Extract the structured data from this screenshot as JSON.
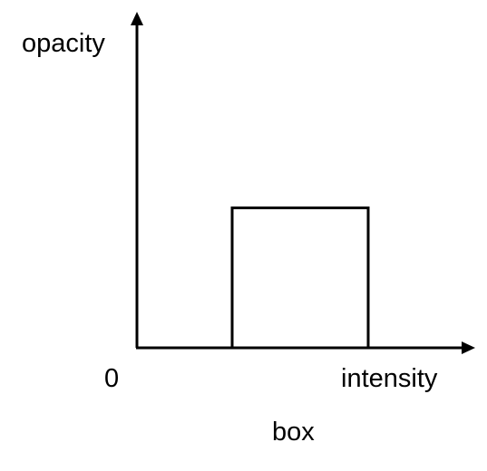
{
  "diagram": {
    "y_axis_label": "opacity",
    "x_axis_label": "intensity",
    "origin_label": "0",
    "caption": "box"
  },
  "chart_data": {
    "type": "area",
    "title": "",
    "xlabel": "intensity",
    "ylabel": "opacity",
    "x_tick_labels": [
      "0"
    ],
    "shape": "box",
    "series": [
      {
        "x": [
          0.35,
          0.35,
          0.85,
          0.85
        ],
        "y": [
          0,
          0.5,
          0.5,
          0
        ]
      }
    ],
    "xlim": [
      0,
      1.2
    ],
    "ylim": [
      0,
      1.1
    ],
    "grid": false,
    "legend": false,
    "color": "#000000"
  }
}
